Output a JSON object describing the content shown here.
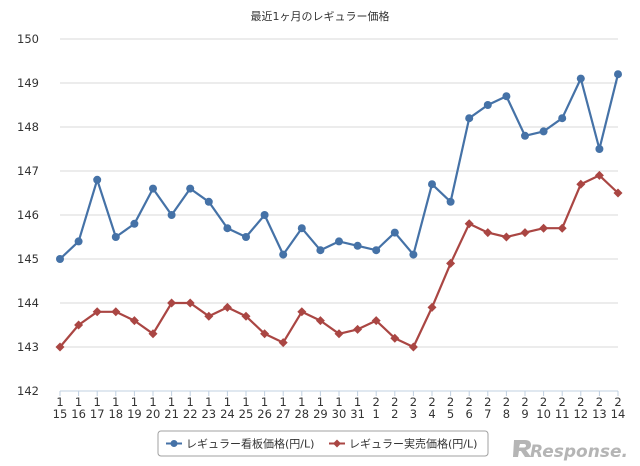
{
  "chart_data": {
    "type": "line",
    "title": "最近1ヶ月のレギュラー価格",
    "xlabel": "",
    "ylabel": "",
    "ylim": [
      142,
      150
    ],
    "yticks": [
      142,
      143,
      144,
      145,
      146,
      147,
      148,
      149,
      150
    ],
    "grid": true,
    "legend_position": "bottom",
    "categories": [
      {
        "month": "1",
        "day": "15"
      },
      {
        "month": "1",
        "day": "16"
      },
      {
        "month": "1",
        "day": "17"
      },
      {
        "month": "1",
        "day": "18"
      },
      {
        "month": "1",
        "day": "19"
      },
      {
        "month": "1",
        "day": "20"
      },
      {
        "month": "1",
        "day": "21"
      },
      {
        "month": "1",
        "day": "22"
      },
      {
        "month": "1",
        "day": "23"
      },
      {
        "month": "1",
        "day": "24"
      },
      {
        "month": "1",
        "day": "25"
      },
      {
        "month": "1",
        "day": "26"
      },
      {
        "month": "1",
        "day": "27"
      },
      {
        "month": "1",
        "day": "28"
      },
      {
        "month": "1",
        "day": "29"
      },
      {
        "month": "1",
        "day": "30"
      },
      {
        "month": "1",
        "day": "31"
      },
      {
        "month": "2",
        "day": "1"
      },
      {
        "month": "2",
        "day": "2"
      },
      {
        "month": "2",
        "day": "3"
      },
      {
        "month": "2",
        "day": "4"
      },
      {
        "month": "2",
        "day": "5"
      },
      {
        "month": "2",
        "day": "6"
      },
      {
        "month": "2",
        "day": "7"
      },
      {
        "month": "2",
        "day": "8"
      },
      {
        "month": "2",
        "day": "9"
      },
      {
        "month": "2",
        "day": "10"
      },
      {
        "month": "2",
        "day": "11"
      },
      {
        "month": "2",
        "day": "12"
      },
      {
        "month": "2",
        "day": "13"
      },
      {
        "month": "2",
        "day": "14"
      }
    ],
    "series": [
      {
        "name": "レギュラー看板価格(円/L)",
        "color": "#4572A7",
        "marker": "circle",
        "values": [
          145.0,
          145.4,
          146.8,
          145.5,
          145.8,
          146.6,
          146.0,
          146.6,
          146.3,
          145.7,
          145.5,
          146.0,
          145.1,
          145.7,
          145.2,
          145.4,
          145.3,
          145.2,
          145.6,
          145.1,
          146.7,
          146.3,
          148.2,
          148.5,
          148.7,
          147.8,
          147.9,
          148.2,
          149.1,
          147.5,
          149.2
        ]
      },
      {
        "name": "レギュラー実売価格(円/L)",
        "color": "#AA4643",
        "marker": "diamond",
        "values": [
          143.0,
          143.5,
          143.8,
          143.8,
          143.6,
          143.3,
          144.0,
          144.0,
          143.7,
          143.9,
          143.7,
          143.3,
          143.1,
          143.8,
          143.6,
          143.3,
          143.4,
          143.6,
          143.2,
          143.0,
          143.9,
          144.9,
          145.8,
          145.6,
          145.5,
          145.6,
          145.7,
          145.7,
          146.7,
          146.9,
          146.5
        ]
      }
    ]
  },
  "watermark": {
    "text": "Response."
  }
}
